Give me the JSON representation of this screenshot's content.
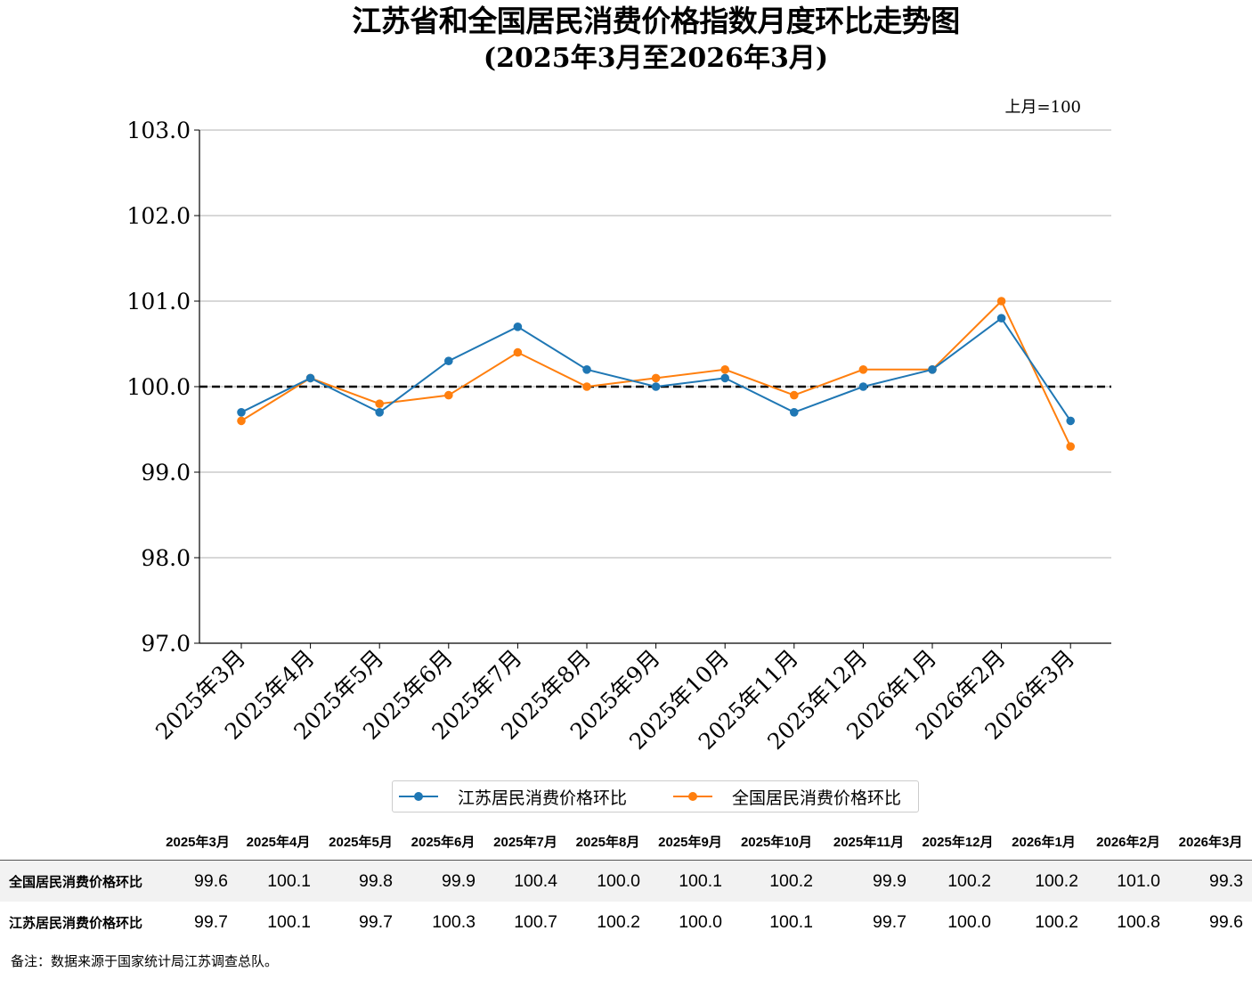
{
  "chart_data": {
    "type": "line",
    "title": "江苏省和全国居民消费价格指数月度环比走势图",
    "subtitle": "(2025年3月至2026年3月)",
    "unit_note": "上月=100",
    "categories": [
      "2025年3月",
      "2025年4月",
      "2025年5月",
      "2025年6月",
      "2025年7月",
      "2025年8月",
      "2025年9月",
      "2025年10月",
      "2025年11月",
      "2025年12月",
      "2026年1月",
      "2026年2月",
      "2026年3月"
    ],
    "ylim": [
      97.0,
      103.0
    ],
    "yticks": [
      "97.0",
      "98.0",
      "99.0",
      "100.0",
      "101.0",
      "102.0",
      "103.0"
    ],
    "reference_line": 100.0,
    "grid": true,
    "series": [
      {
        "name": "江苏居民消费价格环比",
        "color": "#1f77b4",
        "values": [
          99.7,
          100.1,
          99.7,
          100.3,
          100.7,
          100.2,
          100.0,
          100.1,
          99.7,
          100.0,
          100.2,
          100.8,
          99.6
        ]
      },
      {
        "name": "全国居民消费价格环比",
        "color": "#ff7f0e",
        "values": [
          99.6,
          100.1,
          99.8,
          99.9,
          100.4,
          100.0,
          100.1,
          100.2,
          99.9,
          100.2,
          100.2,
          101.0,
          99.3
        ]
      }
    ]
  },
  "legend": [
    "江苏居民消费价格环比",
    "全国居民消费价格环比"
  ],
  "table": {
    "headers": [
      "2025年3月",
      "2025年4月",
      "2025年5月",
      "2025年6月",
      "2025年7月",
      "2025年8月",
      "2025年9月",
      "2025年10月",
      "2025年11月",
      "2025年12月",
      "2026年1月",
      "2026年2月",
      "2026年3月"
    ],
    "rows": [
      {
        "label": "全国居民消费价格环比",
        "values": [
          "99.6",
          "100.1",
          "99.8",
          "99.9",
          "100.4",
          "100.0",
          "100.1",
          "100.2",
          "99.9",
          "100.2",
          "100.2",
          "101.0",
          "99.3"
        ]
      },
      {
        "label": "江苏居民消费价格环比",
        "values": [
          "99.7",
          "100.1",
          "99.7",
          "100.3",
          "100.7",
          "100.2",
          "100.0",
          "100.1",
          "99.7",
          "100.0",
          "100.2",
          "100.8",
          "99.6"
        ]
      }
    ]
  },
  "footnote": "备注：数据来源于国家统计局江苏调查总队。"
}
